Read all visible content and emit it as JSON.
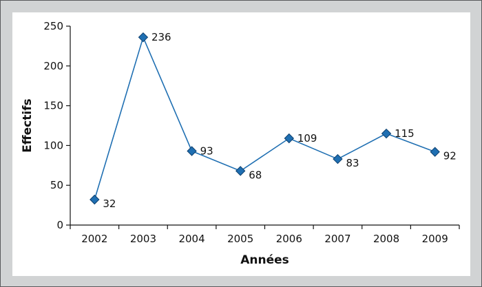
{
  "chart_data": {
    "type": "line",
    "title": "",
    "xlabel": "Années",
    "ylabel": "Effectifs",
    "categories": [
      "2002",
      "2003",
      "2004",
      "2005",
      "2006",
      "2007",
      "2008",
      "2009"
    ],
    "series": [
      {
        "values": [
          32,
          236,
          93,
          68,
          109,
          83,
          115,
          92
        ]
      }
    ],
    "yticks": [
      "0",
      "50",
      "100",
      "150",
      "200",
      "250"
    ],
    "ylim": [
      0,
      250
    ],
    "data_labels": [
      "32",
      "236",
      "93",
      "68",
      "109",
      "83",
      "115",
      "92"
    ],
    "grid": false,
    "legend": "none",
    "colors": {
      "line": "#1f6fb2",
      "marker": "#1f6fb2",
      "marker_edge": "#0d3f6e",
      "frame": "#d1d3d4",
      "axis": "#111111"
    }
  }
}
